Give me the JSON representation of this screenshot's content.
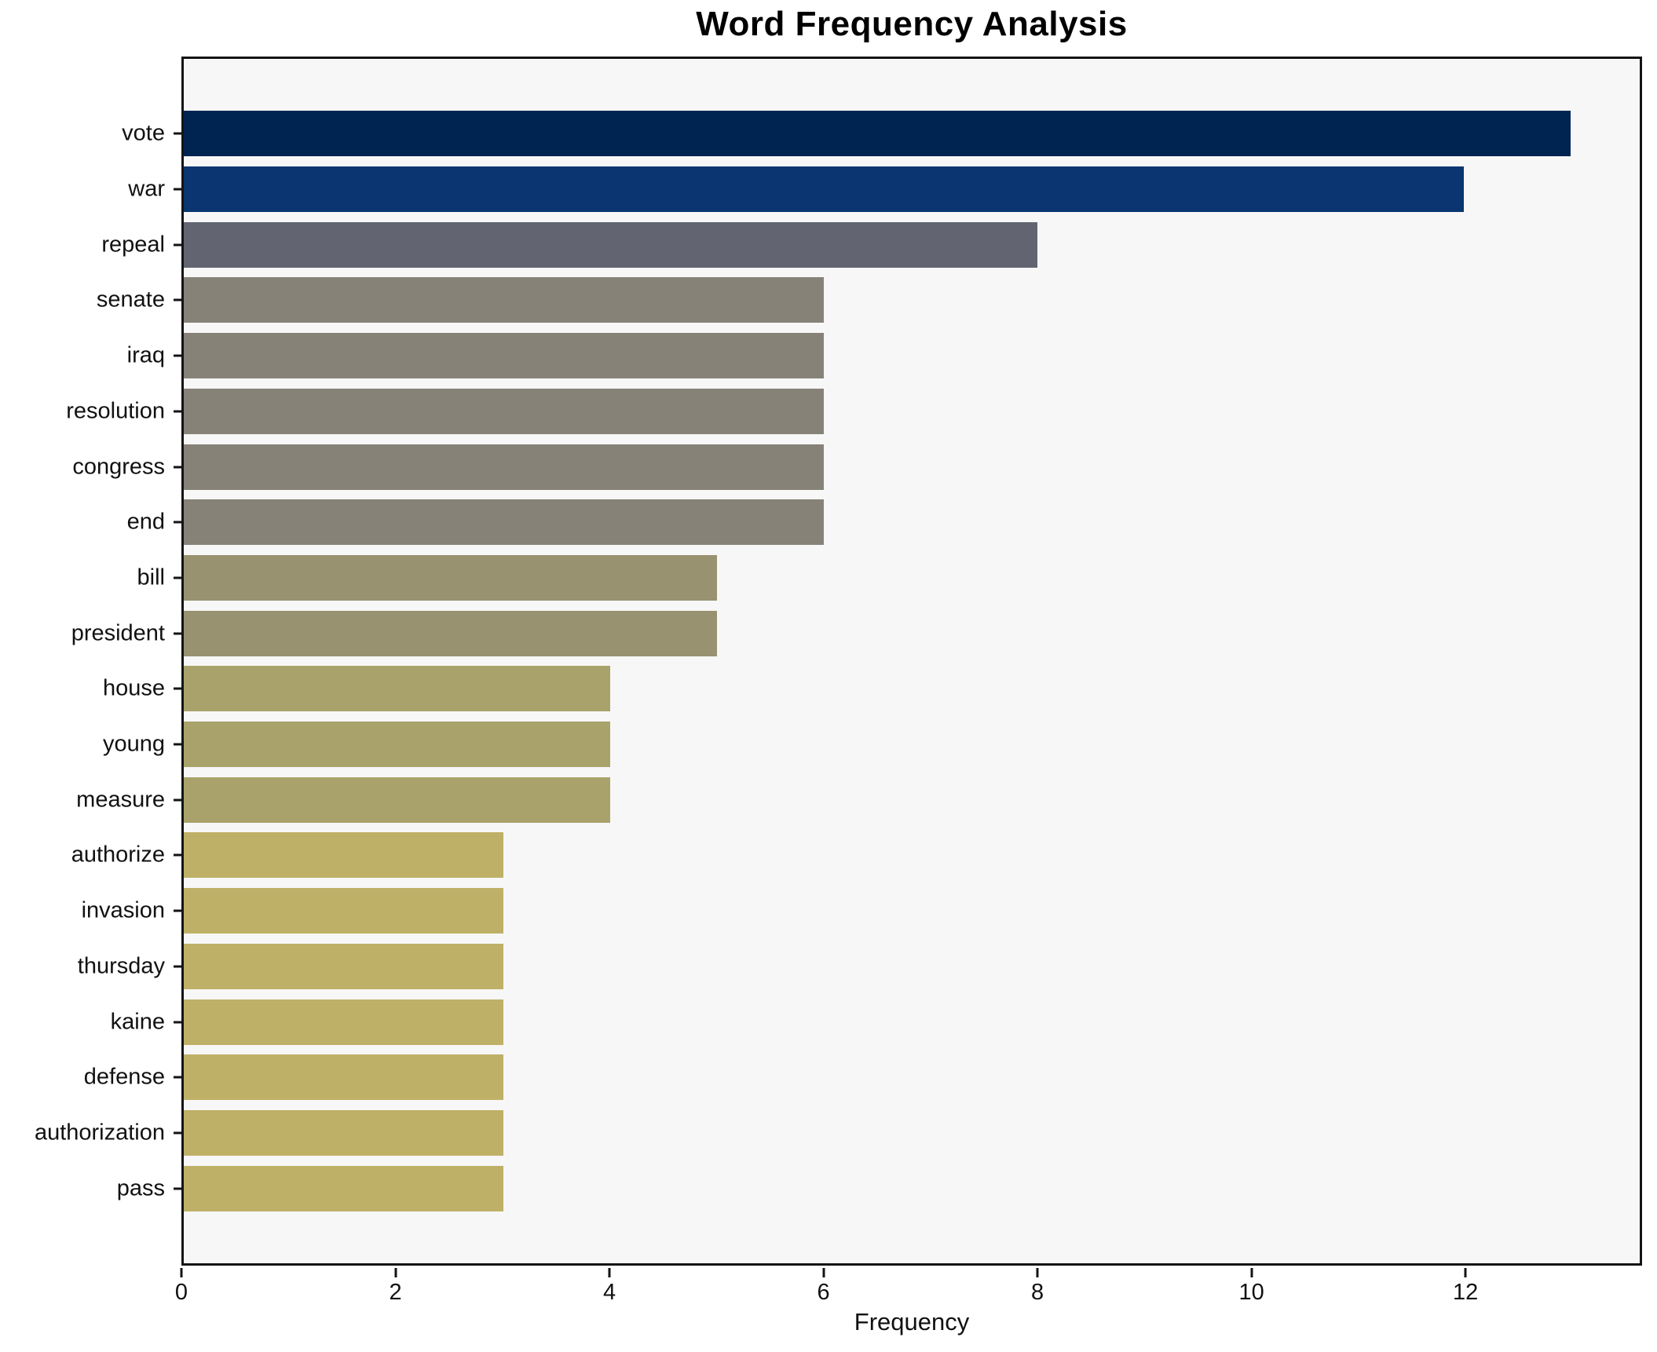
{
  "chart_data": {
    "type": "bar",
    "orientation": "horizontal",
    "title": "Word Frequency Analysis",
    "xlabel": "Frequency",
    "ylabel": "",
    "categories": [
      "vote",
      "war",
      "repeal",
      "senate",
      "iraq",
      "resolution",
      "congress",
      "end",
      "bill",
      "president",
      "house",
      "young",
      "measure",
      "authorize",
      "invasion",
      "thursday",
      "kaine",
      "defense",
      "authorization",
      "pass"
    ],
    "values": [
      13,
      12,
      8,
      6,
      6,
      6,
      6,
      6,
      5,
      5,
      4,
      4,
      4,
      3,
      3,
      3,
      3,
      3,
      3,
      3
    ],
    "bar_colors": [
      "#002451",
      "#0a3570",
      "#626571",
      "#868278",
      "#868278",
      "#868278",
      "#868278",
      "#868278",
      "#989270",
      "#989270",
      "#a9a26b",
      "#a9a26b",
      "#a9a26b",
      "#bfb067",
      "#bfb067",
      "#bfb067",
      "#bfb067",
      "#bfb067",
      "#bfb067",
      "#bfb067"
    ],
    "xlim": [
      0,
      13.65
    ],
    "xticks": [
      0,
      2,
      4,
      6,
      8,
      10,
      12
    ],
    "grid": false,
    "legend": "none",
    "plot_background": "#f7f7f7",
    "figure_background": "#ffffff",
    "spine_color": "#141414"
  }
}
